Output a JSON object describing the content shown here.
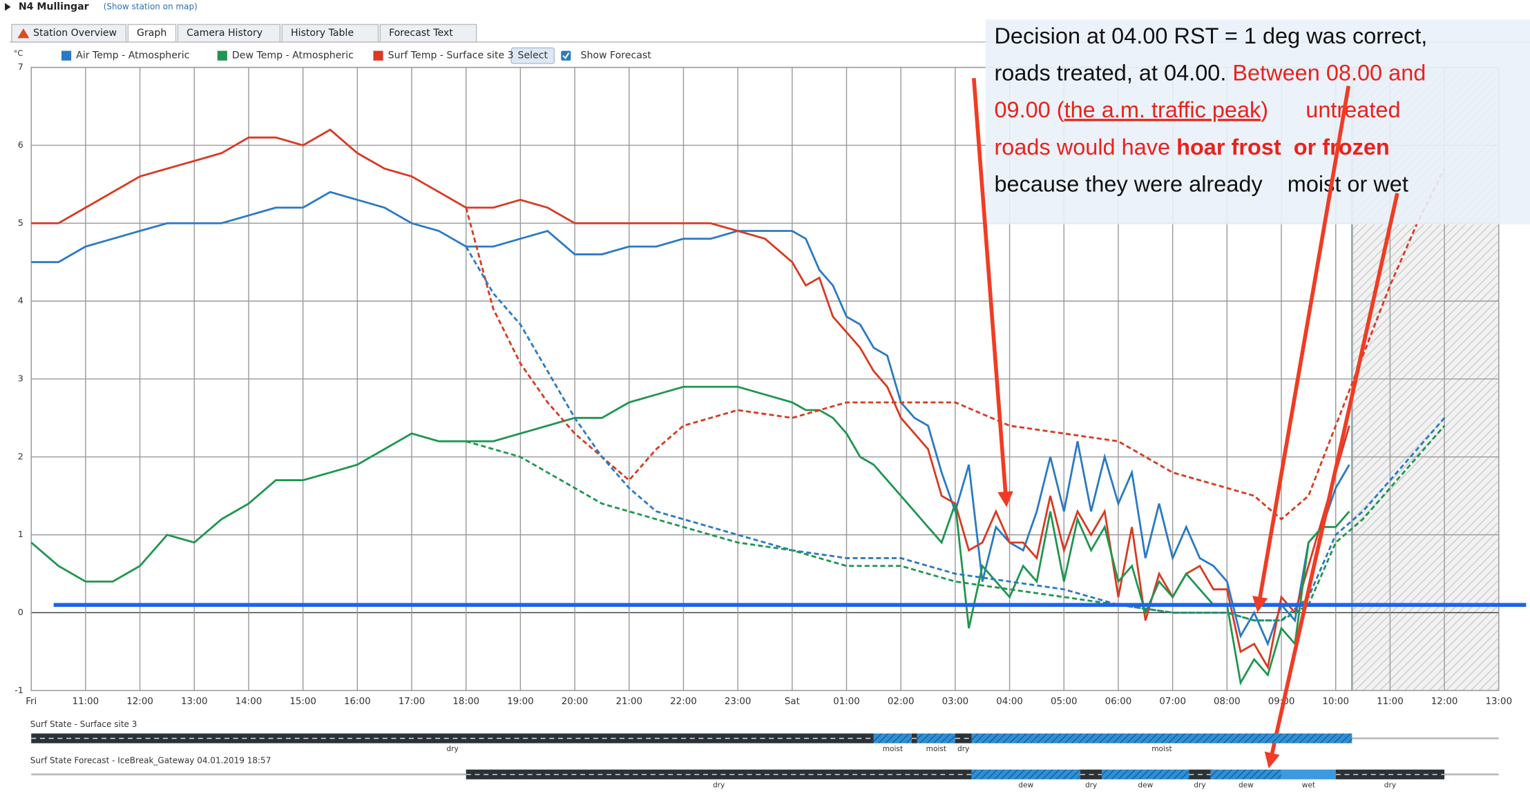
{
  "header": {
    "station": "N4 Mullingar",
    "map_link": "(Show station on map)"
  },
  "tabs": [
    "Station Overview",
    "Graph",
    "Camera History",
    "History Table",
    "Forecast Text"
  ],
  "active_tab": 1,
  "controls": {
    "select": "Select",
    "show_forecast": "Show Forecast",
    "show_forecast_checked": true
  },
  "chart_data": {
    "type": "line",
    "y_unit": "°C",
    "xlim": [
      0,
      27
    ],
    "ylim": [
      -1,
      7
    ],
    "yticks": [
      -1,
      0,
      1,
      2,
      3,
      4,
      5,
      6,
      7
    ],
    "grid": true,
    "xticks": [
      {
        "value": 0,
        "label": "Fri"
      },
      {
        "value": 1,
        "label": "11:00"
      },
      {
        "value": 2,
        "label": "12:00"
      },
      {
        "value": 3,
        "label": "13:00"
      },
      {
        "value": 4,
        "label": "14:00"
      },
      {
        "value": 5,
        "label": "15:00"
      },
      {
        "value": 6,
        "label": "16:00"
      },
      {
        "value": 7,
        "label": "17:00"
      },
      {
        "value": 8,
        "label": "18:00"
      },
      {
        "value": 9,
        "label": "19:00"
      },
      {
        "value": 10,
        "label": "20:00"
      },
      {
        "value": 11,
        "label": "21:00"
      },
      {
        "value": 12,
        "label": "22:00"
      },
      {
        "value": 13,
        "label": "23:00"
      },
      {
        "value": 14,
        "label": "Sat"
      },
      {
        "value": 15,
        "label": "01:00"
      },
      {
        "value": 16,
        "label": "02:00"
      },
      {
        "value": 17,
        "label": "03:00"
      },
      {
        "value": 18,
        "label": "04:00"
      },
      {
        "value": 19,
        "label": "05:00"
      },
      {
        "value": 20,
        "label": "06:00"
      },
      {
        "value": 21,
        "label": "07:00"
      },
      {
        "value": 22,
        "label": "08:00"
      },
      {
        "value": 23,
        "label": "09:00"
      },
      {
        "value": 24,
        "label": "10:00"
      },
      {
        "value": 25,
        "label": "11:00"
      },
      {
        "value": 26,
        "label": "12:00"
      },
      {
        "value": 27,
        "label": "13:00"
      }
    ],
    "forecast_from": 24.3,
    "reference_line": {
      "value": 0.1,
      "color": "#1a66e8"
    },
    "legend": [
      {
        "name": "Air Temp - Atmospheric",
        "color": "#2a7ac4"
      },
      {
        "name": "Dew Temp - Atmospheric",
        "color": "#1f9650"
      },
      {
        "name": "Surf Temp - Surface site 3",
        "color": "#d83a22"
      }
    ],
    "series": [
      {
        "legend": 0,
        "dashed": false,
        "x": [
          0,
          0.5,
          1,
          1.5,
          2,
          2.5,
          3,
          3.5,
          4,
          4.5,
          5,
          5.5,
          6,
          6.5,
          7,
          7.5,
          8,
          8.5,
          9,
          9.5,
          10,
          10.5,
          11,
          11.5,
          12,
          12.5,
          13,
          13.5,
          14,
          14.25,
          14.5,
          14.75,
          15,
          15.25,
          15.5,
          15.75,
          16,
          16.25,
          16.5,
          16.75,
          17,
          17.25,
          17.5,
          17.75,
          18,
          18.25,
          18.5,
          18.75,
          19,
          19.25,
          19.5,
          19.75,
          20,
          20.25,
          20.5,
          20.75,
          21,
          21.25,
          21.5,
          21.75,
          22,
          22.25,
          22.5,
          22.75,
          23,
          23.25,
          23.5,
          23.75,
          24,
          24.25
        ],
        "values": [
          4.5,
          4.5,
          4.7,
          4.8,
          4.9,
          5.0,
          5.0,
          5.0,
          5.1,
          5.2,
          5.2,
          5.4,
          5.3,
          5.2,
          5.0,
          4.9,
          4.7,
          4.7,
          4.8,
          4.9,
          4.6,
          4.6,
          4.7,
          4.7,
          4.8,
          4.8,
          4.9,
          4.9,
          4.9,
          4.8,
          4.4,
          4.2,
          3.8,
          3.7,
          3.4,
          3.3,
          2.7,
          2.5,
          2.4,
          1.8,
          1.3,
          1.9,
          0.4,
          1.1,
          0.9,
          0.8,
          1.3,
          2.0,
          1.3,
          2.2,
          1.3,
          2.0,
          1.4,
          1.8,
          0.7,
          1.4,
          0.7,
          1.1,
          0.7,
          0.6,
          0.4,
          -0.3,
          0.0,
          -0.4,
          0.1,
          -0.1,
          0.9,
          1.1,
          1.6,
          1.9
        ]
      },
      {
        "legend": 2,
        "dashed": false,
        "x": [
          0,
          0.5,
          1,
          1.5,
          2,
          2.5,
          3,
          3.5,
          4,
          4.5,
          5,
          5.5,
          6,
          6.5,
          7,
          7.5,
          8,
          8.5,
          9,
          9.5,
          10,
          10.5,
          11,
          11.5,
          12,
          12.5,
          13,
          13.5,
          14,
          14.25,
          14.5,
          14.75,
          15,
          15.25,
          15.5,
          15.75,
          16,
          16.25,
          16.5,
          16.75,
          17,
          17.25,
          17.5,
          17.75,
          18,
          18.25,
          18.5,
          18.75,
          19,
          19.25,
          19.5,
          19.75,
          20,
          20.25,
          20.5,
          20.75,
          21,
          21.25,
          21.5,
          21.75,
          22,
          22.25,
          22.5,
          22.75,
          23,
          23.25,
          23.5,
          23.75,
          24,
          24.25
        ],
        "values": [
          5.0,
          5.0,
          5.2,
          5.4,
          5.6,
          5.7,
          5.8,
          5.9,
          6.1,
          6.1,
          6.0,
          6.2,
          5.9,
          5.7,
          5.6,
          5.4,
          5.2,
          5.2,
          5.3,
          5.2,
          5.0,
          5.0,
          5.0,
          5.0,
          5.0,
          5.0,
          4.9,
          4.8,
          4.5,
          4.2,
          4.3,
          3.8,
          3.6,
          3.4,
          3.1,
          2.9,
          2.5,
          2.3,
          2.1,
          1.5,
          1.4,
          0.8,
          0.9,
          1.3,
          0.9,
          0.9,
          0.7,
          1.5,
          0.8,
          1.3,
          1.0,
          1.3,
          0.2,
          1.1,
          -0.1,
          0.5,
          0.2,
          0.5,
          0.6,
          0.3,
          0.3,
          -0.5,
          -0.4,
          -0.7,
          0.2,
          0.0,
          0.6,
          1.2,
          1.8,
          2.4
        ]
      },
      {
        "legend": 1,
        "dashed": false,
        "x": [
          0,
          0.5,
          1,
          1.5,
          2,
          2.5,
          3,
          3.5,
          4,
          4.5,
          5,
          5.5,
          6,
          6.5,
          7,
          7.5,
          8,
          8.5,
          9,
          9.5,
          10,
          10.5,
          11,
          11.5,
          12,
          12.5,
          13,
          13.5,
          14,
          14.25,
          14.5,
          14.75,
          15,
          15.25,
          15.5,
          15.75,
          16,
          16.25,
          16.5,
          16.75,
          17,
          17.25,
          17.5,
          17.75,
          18,
          18.25,
          18.5,
          18.75,
          19,
          19.25,
          19.5,
          19.75,
          20,
          20.25,
          20.5,
          20.75,
          21,
          21.25,
          21.5,
          21.75,
          22,
          22.25,
          22.5,
          22.75,
          23,
          23.25,
          23.5,
          23.75,
          24,
          24.25
        ],
        "values": [
          0.9,
          0.6,
          0.4,
          0.4,
          0.6,
          1.0,
          0.9,
          1.2,
          1.4,
          1.7,
          1.7,
          1.8,
          1.9,
          2.1,
          2.3,
          2.2,
          2.2,
          2.2,
          2.3,
          2.4,
          2.5,
          2.5,
          2.7,
          2.8,
          2.9,
          2.9,
          2.9,
          2.8,
          2.7,
          2.6,
          2.6,
          2.5,
          2.3,
          2.0,
          1.9,
          1.7,
          1.5,
          1.3,
          1.1,
          0.9,
          1.4,
          -0.2,
          0.6,
          0.4,
          0.2,
          0.6,
          0.4,
          1.3,
          0.4,
          1.2,
          0.8,
          1.1,
          0.4,
          0.6,
          0.0,
          0.4,
          0.2,
          0.5,
          0.3,
          0.1,
          0.1,
          -0.9,
          -0.6,
          -0.8,
          -0.2,
          -0.4,
          0.9,
          1.1,
          1.1,
          1.3
        ]
      },
      {
        "legend": 2,
        "dashed": true,
        "x": [
          8,
          8.5,
          9,
          9.5,
          10,
          10.5,
          11,
          11.5,
          12,
          13,
          14,
          15,
          16,
          17,
          18,
          19,
          20,
          21,
          22,
          22.5,
          23,
          23.5,
          24,
          24.5,
          25,
          25.5,
          26
        ],
        "values": [
          5.2,
          3.9,
          3.2,
          2.7,
          2.3,
          2.0,
          1.7,
          2.1,
          2.4,
          2.6,
          2.5,
          2.7,
          2.7,
          2.7,
          2.4,
          2.3,
          2.2,
          1.8,
          1.6,
          1.5,
          1.2,
          1.5,
          2.4,
          3.3,
          4.2,
          5.0,
          5.7
        ]
      },
      {
        "legend": 0,
        "dashed": true,
        "x": [
          8,
          8.5,
          9,
          9.5,
          10,
          10.5,
          11,
          11.5,
          12,
          13,
          14,
          15,
          16,
          17,
          18,
          19,
          20,
          21,
          22,
          22.5,
          23,
          23.5,
          24,
          24.5,
          25,
          25.5,
          26
        ],
        "values": [
          4.7,
          4.1,
          3.7,
          3.1,
          2.5,
          2.0,
          1.6,
          1.3,
          1.2,
          1.0,
          0.8,
          0.7,
          0.7,
          0.5,
          0.4,
          0.3,
          0.1,
          0.0,
          0.0,
          -0.1,
          -0.1,
          0.2,
          1.0,
          1.3,
          1.7,
          2.1,
          2.5
        ]
      },
      {
        "legend": 1,
        "dashed": true,
        "x": [
          8,
          8.5,
          9,
          9.5,
          10,
          10.5,
          11,
          11.5,
          12,
          13,
          14,
          15,
          16,
          17,
          18,
          19,
          20,
          21,
          22,
          22.5,
          23,
          23.5,
          24,
          24.5,
          25,
          25.5,
          26
        ],
        "values": [
          2.2,
          2.1,
          2.0,
          1.8,
          1.6,
          1.4,
          1.3,
          1.2,
          1.1,
          0.9,
          0.8,
          0.6,
          0.6,
          0.4,
          0.3,
          0.2,
          0.1,
          0,
          0,
          -0.1,
          -0.1,
          0.1,
          0.9,
          1.2,
          1.6,
          2.0,
          2.4
        ]
      }
    ]
  },
  "surface_rows": [
    {
      "title": "Surf State - Surface site 3",
      "segments": [
        {
          "state": "dry",
          "from": 0,
          "to": 15.5,
          "label": "dry"
        },
        {
          "state": "moist",
          "from": 15.5,
          "to": 16.2,
          "label": "moist"
        },
        {
          "state": "dry",
          "from": 16.2,
          "to": 16.3
        },
        {
          "state": "moist",
          "from": 16.3,
          "to": 17.0,
          "label": "moist"
        },
        {
          "state": "dry",
          "from": 17.0,
          "to": 17.3,
          "label": "dry"
        },
        {
          "state": "moist",
          "from": 17.3,
          "to": 24.3,
          "label": "moist"
        }
      ]
    },
    {
      "title": "Surf State Forecast - IceBreak_Gateway 04.01.2019 18:57",
      "segments": [
        {
          "state": "dry",
          "from": 8,
          "to": 17.3,
          "label": "dry"
        },
        {
          "state": "dew",
          "from": 17.3,
          "to": 19.3,
          "label": "dew"
        },
        {
          "state": "dry",
          "from": 19.3,
          "to": 19.7,
          "label": "dry"
        },
        {
          "state": "dew",
          "from": 19.7,
          "to": 21.3,
          "label": "dew"
        },
        {
          "state": "dry",
          "from": 21.3,
          "to": 21.7,
          "label": "dry"
        },
        {
          "state": "dew",
          "from": 21.7,
          "to": 23.0,
          "label": "dew"
        },
        {
          "state": "wet",
          "from": 23.0,
          "to": 24.0,
          "label": "wet"
        },
        {
          "state": "dry",
          "from": 24.0,
          "to": 26.0,
          "label": "dry"
        }
      ]
    }
  ],
  "annotation": {
    "lines": [
      [
        {
          "text": "Decision at 04.00 RST = 1 deg was correct,",
          "color": "#111"
        }
      ],
      [
        {
          "text": "roads treated, at 04.00. ",
          "color": "#111"
        },
        {
          "text": "Between 08.00 and",
          "color": "#e8231b"
        }
      ],
      [
        {
          "text": "09.00 (",
          "color": "#e8231b"
        },
        {
          "text": "the a.m. traffic peak",
          "color": "#e8231b",
          "underline": true
        },
        {
          "text": ")      untreated",
          "color": "#e8231b"
        }
      ],
      [
        {
          "text": "roads would have ",
          "color": "#e8231b"
        },
        {
          "text": "hoar frost  or frozen",
          "color": "#e8231b",
          "bold": true
        }
      ],
      [
        {
          "text": "because they were already    moist or wet",
          "color": "#111"
        }
      ]
    ]
  }
}
